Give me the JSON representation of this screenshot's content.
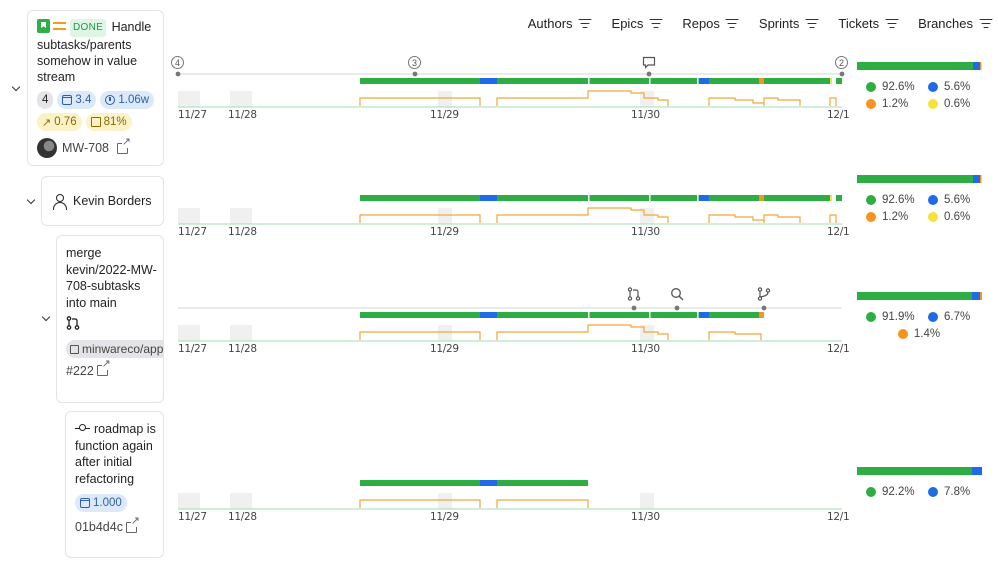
{
  "colors": {
    "green": "#2ead44",
    "blue": "#1f6ae6",
    "orange": "#f7931e",
    "yellow": "#f5e23c",
    "grid": "#e6e6e6",
    "weekend": "#f0f0f0"
  },
  "filters": [
    {
      "label": "Authors",
      "icon": "filter-icon"
    },
    {
      "label": "Epics",
      "icon": "filter-icon"
    },
    {
      "label": "Repos",
      "icon": "filter-icon"
    },
    {
      "label": "Sprints",
      "icon": "filter-icon"
    },
    {
      "label": "Tickets",
      "icon": "filter-icon"
    },
    {
      "label": "Branches",
      "icon": "filter-icon"
    }
  ],
  "ticket": {
    "status": "DONE",
    "title": "Handle subtasks/parents somehow in value stream",
    "count": "4",
    "points": "3.4",
    "duration": "1.06w",
    "trend": "0.76",
    "percent": "81%",
    "key": "MW-708"
  },
  "author": {
    "name": "Kevin Borders"
  },
  "pull_request": {
    "title": "merge kevin/2022-MW-708-subtasks into main",
    "repo": "minwareco/app",
    "number": "#222"
  },
  "commit": {
    "message": "roadmap is function again after initial refactoring",
    "points": "1.000",
    "sha": "01b4d4c"
  },
  "timeline_ticks": [
    "11/27",
    "11/28",
    "11/29",
    "11/30",
    "12/1"
  ],
  "timeline_events": {
    "badge_1": "4",
    "badge_2": "3",
    "badge_3": "2"
  },
  "stats": [
    {
      "legend": [
        {
          "color": "green",
          "value": "92.6%"
        },
        {
          "color": "blue",
          "value": "5.6%"
        },
        {
          "color": "orange",
          "value": "1.2%"
        },
        {
          "color": "yellow",
          "value": "0.6%"
        }
      ]
    },
    {
      "legend": [
        {
          "color": "green",
          "value": "92.6%"
        },
        {
          "color": "blue",
          "value": "5.6%"
        },
        {
          "color": "orange",
          "value": "1.2%"
        },
        {
          "color": "yellow",
          "value": "0.6%"
        }
      ]
    },
    {
      "legend": [
        {
          "color": "green",
          "value": "91.9%"
        },
        {
          "color": "blue",
          "value": "6.7%"
        },
        {
          "color": "orange",
          "value": "1.4%"
        }
      ]
    },
    {
      "legend": [
        {
          "color": "green",
          "value": "92.2%"
        },
        {
          "color": "blue",
          "value": "7.8%"
        }
      ]
    }
  ]
}
